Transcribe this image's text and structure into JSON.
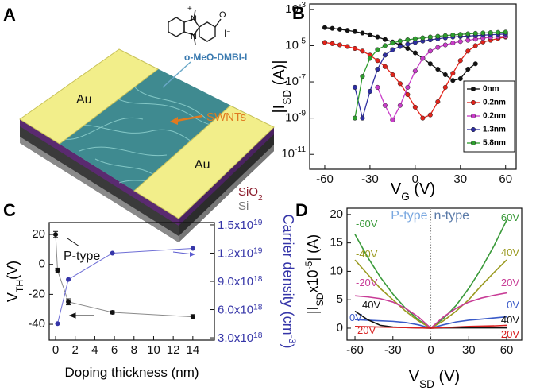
{
  "illustration": {
    "panel_label": "A",
    "pad_labels": [
      "Au",
      "Au"
    ],
    "nanotube_label": "SWNTs",
    "oxide_label": [
      "SiO",
      "2"
    ],
    "substrate_label": "Si",
    "dopant_label": "o-MeO-DMBI-I",
    "molecule": {
      "atoms": [
        "N",
        "N",
        "O"
      ],
      "charge": "+",
      "counterion": [
        "I",
        "−"
      ]
    }
  },
  "chart_data": [
    {
      "type": "line",
      "panel_label": "B",
      "log_y": true,
      "legend": "right",
      "xlabel": [
        {
          "text": "V"
        },
        {
          "text": "G",
          "shift": "sub"
        },
        {
          "text": " (V)"
        }
      ],
      "ylabel": [
        {
          "text": "|I"
        },
        {
          "text": "SD",
          "shift": "sub"
        },
        {
          "text": " (A)|"
        }
      ],
      "xlim": [
        -70,
        67
      ],
      "xticks": [
        -60,
        -30,
        0,
        30,
        60
      ],
      "ylim": [
        1.5e-12,
        0.002
      ],
      "yticks": [
        {
          "value": 1e-11,
          "label": "10",
          "exponent": "-11"
        },
        {
          "value": 1e-09,
          "label": "10",
          "exponent": "-9"
        },
        {
          "value": 1e-07,
          "label": "10",
          "exponent": "-7"
        },
        {
          "value": 1e-05,
          "label": "10",
          "exponent": "-5"
        },
        {
          "value": 0.001,
          "label": "10",
          "exponent": "-3"
        }
      ],
      "series": [
        {
          "name": "0nm",
          "color": "#111111",
          "x": [
            -60,
            -55,
            -50,
            -45,
            -40,
            -35,
            -30,
            -25,
            -20,
            -15,
            -10,
            -5,
            0,
            5,
            10,
            15,
            20,
            25,
            30,
            35,
            40
          ],
          "values": [
            0.0001,
            9e-05,
            8e-05,
            7e-05,
            6e-05,
            5e-05,
            4e-05,
            3e-05,
            2.2e-05,
            1.6e-05,
            1.1e-05,
            7e-06,
            4e-06,
            2e-06,
            1e-06,
            5e-07,
            2.5e-07,
            1.2e-07,
            1.5e-07,
            5e-07,
            1e-06
          ]
        },
        {
          "name": "0.2nm",
          "color": "#e2231a",
          "x": [
            -60,
            -55,
            -50,
            -45,
            -40,
            -35,
            -30,
            -25,
            -20,
            -15,
            -10,
            -5,
            0,
            5,
            10,
            15,
            20,
            25,
            30,
            35,
            40,
            45,
            50,
            55,
            60
          ],
          "values": [
            1.5e-05,
            1.3e-05,
            1.1e-05,
            9e-06,
            7e-06,
            5e-06,
            3e-06,
            1.5e-06,
            7e-07,
            2.5e-07,
            8e-08,
            2e-08,
            4e-09,
            1e-09,
            1.5e-09,
            8e-09,
            5e-08,
            3e-07,
            1.5e-06,
            5e-06,
            1e-05,
            1.6e-05,
            2e-05,
            2.5e-05,
            3e-05
          ]
        },
        {
          "name": "0.2nm",
          "color": "#c83cc8",
          "x": [
            -25,
            -20,
            -15,
            -10,
            -5,
            0,
            5,
            10,
            15,
            20,
            25,
            30,
            35,
            40,
            45,
            50,
            55,
            60
          ],
          "values": [
            5e-08,
            5e-09,
            8e-10,
            5e-09,
            5e-08,
            4e-07,
            2e-06,
            5e-06,
            8e-06,
            1.1e-05,
            1.4e-05,
            1.7e-05,
            2e-05,
            2.3e-05,
            2.6e-05,
            2.9e-05,
            3.1e-05,
            3.3e-05
          ]
        },
        {
          "name": "1.3nm",
          "color": "#2e2ea0",
          "x": [
            -40,
            -35,
            -30,
            -25,
            -20,
            -15,
            -10,
            -5,
            0,
            5,
            10,
            15,
            20,
            25,
            30,
            35,
            40,
            45,
            50,
            55,
            60
          ],
          "values": [
            5e-08,
            1e-09,
            3e-08,
            5e-07,
            3e-06,
            6e-06,
            9e-06,
            1.2e-05,
            1.5e-05,
            1.8e-05,
            2.1e-05,
            2.4e-05,
            2.7e-05,
            3e-05,
            3.2e-05,
            3.4e-05,
            3.6e-05,
            3.8e-05,
            4e-05,
            4.2e-05,
            4.4e-05
          ]
        },
        {
          "name": "5.8nm",
          "color": "#2e9e2e",
          "x": [
            -40,
            -35,
            -30,
            -25,
            -20,
            -15,
            -10,
            -5,
            0,
            5,
            10,
            15,
            20,
            25,
            30,
            35,
            40,
            45,
            50,
            55,
            60
          ],
          "values": [
            1e-09,
            2e-07,
            2e-06,
            6e-06,
            1e-05,
            1.4e-05,
            1.8e-05,
            2.1e-05,
            2.4e-05,
            2.7e-05,
            3e-05,
            3.3e-05,
            3.6e-05,
            3.9e-05,
            4.2e-05,
            4.5e-05,
            4.8e-05,
            5e-05,
            5.2e-05,
            5.4e-05,
            5.6e-05
          ]
        }
      ]
    },
    {
      "type": "line",
      "panel_label": "C",
      "xlabel": [
        {
          "text": "Doping thickness (nm)"
        }
      ],
      "ylabel": [
        {
          "text": "V"
        },
        {
          "text": "TH",
          "shift": "sub"
        },
        {
          "text": "(V)"
        }
      ],
      "y2label": [
        {
          "text": "Carrier density (cm"
        },
        {
          "text": "-3",
          "shift": "super"
        },
        {
          "text": ")"
        }
      ],
      "annotations": [
        "P-type"
      ],
      "xlim": [
        -0.65,
        16.2
      ],
      "xticks": [
        0,
        2,
        4,
        6,
        8,
        10,
        12,
        14
      ],
      "ylim": [
        -50.6,
        28
      ],
      "yticks": [
        -40,
        -20,
        0,
        20
      ],
      "y2lim": [
        2.75e+18,
        1.525e+19
      ],
      "y2ticks": [
        {
          "value": 3e+18,
          "label": "3.0x10",
          "exponent": "18"
        },
        {
          "value": 6e+18,
          "label": "6.0x10",
          "exponent": "18"
        },
        {
          "value": 9e+18,
          "label": "9.0x10",
          "exponent": "18"
        },
        {
          "value": 1.2e+19,
          "label": "1.2x10",
          "exponent": "19"
        },
        {
          "value": 1.5e+19,
          "label": "1.5x10",
          "exponent": "19"
        }
      ],
      "series": [
        {
          "color": "#111111",
          "line_color": "#8a8a8a",
          "x": [
            0,
            0.2,
            1.3,
            5.8,
            14
          ],
          "values": [
            20,
            -4,
            -25,
            -32,
            -35
          ],
          "errors": [
            2,
            1.5,
            2,
            1,
            1.5
          ]
        },
        {
          "color": "#3535a8",
          "line_color": "#6f6fd6",
          "axis": "y2",
          "x": [
            0.2,
            1.3,
            5.8,
            14
          ],
          "values": [
            4.5e+18,
            9.2e+18,
            1.2e+19,
            1.25e+19
          ]
        }
      ]
    },
    {
      "type": "line",
      "panel_label": "D",
      "xlabel": [
        {
          "text": "V"
        },
        {
          "text": "SD",
          "shift": "sub"
        },
        {
          "text": " (V)"
        }
      ],
      "ylabel": [
        {
          "text": "|I"
        },
        {
          "text": "SD",
          "shift": "sub"
        },
        {
          "text": "x10"
        },
        {
          "text": "-5",
          "shift": "super"
        },
        {
          "text": "| (A)"
        }
      ],
      "annotations": [
        "P-type",
        "n-type"
      ],
      "xlim": [
        -66.3,
        71.9
      ],
      "xticks": [
        -60,
        -30,
        0,
        30,
        60
      ],
      "ylim": [
        -2.1,
        21.1
      ],
      "yticks": [
        0,
        5,
        10,
        15,
        20
      ],
      "x": [
        -60,
        -50,
        -40,
        -30,
        -20,
        -10,
        0,
        10,
        20,
        30,
        40,
        50,
        60
      ],
      "series": [
        {
          "labels": [
            "-60V",
            "60V"
          ],
          "color": "#3a9a3a",
          "values": [
            16.5,
            12.5,
            9,
            6,
            3.5,
            1.5,
            0,
            1.7,
            4,
            7,
            10.5,
            14.5,
            19
          ]
        },
        {
          "labels": [
            "-40V",
            "40V"
          ],
          "color": "#9a9a20",
          "values": [
            12,
            9.5,
            7,
            5,
            3,
            1.3,
            0,
            1.3,
            3,
            5,
            7.5,
            9.8,
            12
          ]
        },
        {
          "labels": [
            "-20V",
            "20V"
          ],
          "color": "#c83c96",
          "values": [
            5.7,
            5.5,
            5.2,
            4.6,
            3.5,
            2,
            0,
            2,
            3.5,
            4.6,
            5.3,
            5.8,
            6.2
          ]
        },
        {
          "labels": [
            "0V",
            "0V"
          ],
          "color": "#3a5ac8",
          "values": [
            1.5,
            1.4,
            1.3,
            1.2,
            1,
            0.6,
            0,
            0.6,
            1.1,
            1.4,
            1.6,
            1.8,
            2
          ]
        },
        {
          "labels": [
            "40V",
            "40V"
          ],
          "color": "#111111",
          "values": [
            3,
            1.5,
            0.5,
            0.2,
            0.1,
            0.05,
            0,
            0.05,
            0.05,
            0.05,
            0.05,
            0.05,
            0.05
          ]
        },
        {
          "labels": [
            "20V",
            "-20V"
          ],
          "color": "#d82020",
          "values": [
            0.3,
            0.25,
            0.2,
            0.15,
            0.1,
            0.05,
            0,
            0.1,
            0.2,
            0.3,
            0.35,
            0.4,
            0.5
          ]
        }
      ]
    }
  ]
}
